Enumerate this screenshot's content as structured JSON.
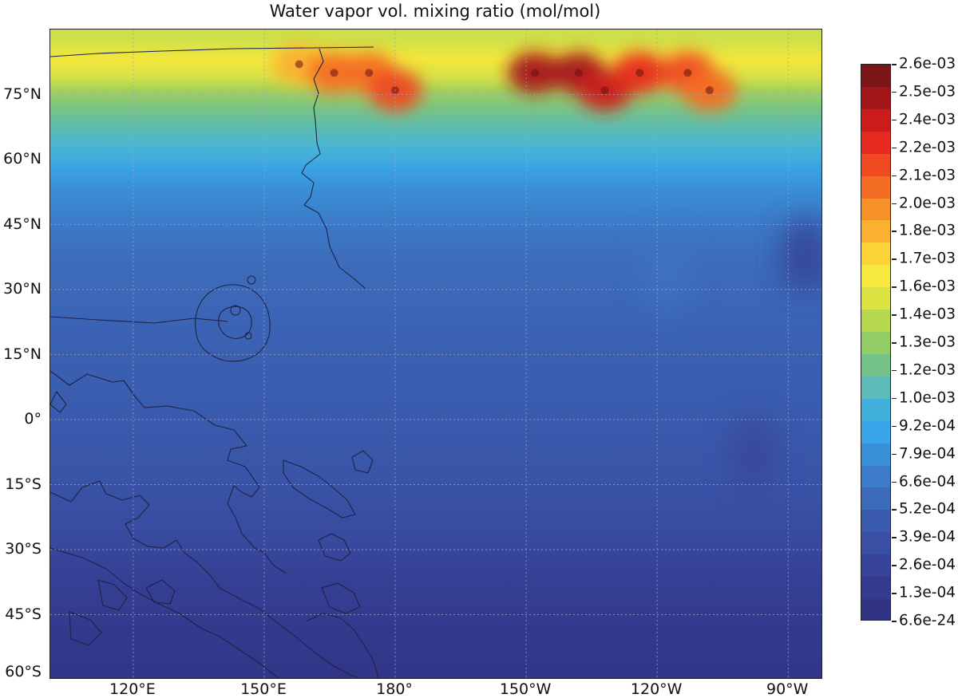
{
  "title": "Water vapor vol. mixing ratio (mol/mol)",
  "map": {
    "projection": "cylindrical",
    "lon_range": [
      101,
      278
    ],
    "lat_range": [
      -60,
      90
    ],
    "gridlines": true,
    "coastlines": true,
    "lat_ticks": [
      {
        "value": 75,
        "label": "75°N"
      },
      {
        "value": 60,
        "label": "60°N"
      },
      {
        "value": 45,
        "label": "45°N"
      },
      {
        "value": 30,
        "label": "30°N"
      },
      {
        "value": 15,
        "label": "15°N"
      },
      {
        "value": 0,
        "label": "0°"
      },
      {
        "value": -15,
        "label": "15°S"
      },
      {
        "value": -30,
        "label": "30°S"
      },
      {
        "value": -45,
        "label": "45°S"
      },
      {
        "value": -60,
        "label": "60°S"
      }
    ],
    "lon_ticks": [
      {
        "value": 120,
        "label": "120°E"
      },
      {
        "value": 150,
        "label": "150°E"
      },
      {
        "value": 180,
        "label": "180°"
      },
      {
        "value": 210,
        "label": "150°W"
      },
      {
        "value": 240,
        "label": "120°W"
      },
      {
        "value": 270,
        "label": "90°W"
      }
    ]
  },
  "colorbar": {
    "position": "right",
    "labels": [
      "2.6e-03",
      "2.5e-03",
      "2.4e-03",
      "2.2e-03",
      "2.1e-03",
      "2.0e-03",
      "1.8e-03",
      "1.7e-03",
      "1.6e-03",
      "1.4e-03",
      "1.3e-03",
      "1.2e-03",
      "1.0e-03",
      "9.2e-04",
      "7.9e-04",
      "6.6e-04",
      "5.2e-04",
      "3.9e-04",
      "2.6e-04",
      "1.3e-04",
      "6.6e-24"
    ],
    "colors": [
      "#7a1416",
      "#a5161a",
      "#cb1b1d",
      "#e62a20",
      "#ef4a22",
      "#f46d24",
      "#f8902a",
      "#fbb030",
      "#fcd43a",
      "#f7e93e",
      "#dbe443",
      "#b5d84e",
      "#92cc65",
      "#74c28a",
      "#5cbbb6",
      "#42b0dc",
      "#39a4e8",
      "#3a8fd9",
      "#3b7bc9",
      "#3c6ab9",
      "#3a5bad",
      "#3a4fa3",
      "#37449a",
      "#343b8e",
      "#313384"
    ]
  },
  "field": {
    "bands": [
      {
        "lat": 88,
        "color": "#cde04a"
      },
      {
        "lat": 83,
        "color": "#f4e73c"
      },
      {
        "lat": 79,
        "color": "#d6e247"
      },
      {
        "lat": 76,
        "color": "#a3d15a"
      },
      {
        "lat": 72,
        "color": "#7bc484"
      },
      {
        "lat": 67,
        "color": "#5bbcb3"
      },
      {
        "lat": 62,
        "color": "#45b3d8"
      },
      {
        "lat": 58,
        "color": "#3aa3e4"
      },
      {
        "lat": 53,
        "color": "#3a8fd6"
      },
      {
        "lat": 46,
        "color": "#3b7cc8"
      },
      {
        "lat": 36,
        "color": "#3c6cba"
      },
      {
        "lat": 20,
        "color": "#3b62b4"
      },
      {
        "lat": 3,
        "color": "#3a5cae"
      },
      {
        "lat": -12,
        "color": "#3a55a8"
      },
      {
        "lat": -26,
        "color": "#384ba0"
      },
      {
        "lat": -38,
        "color": "#353f93"
      },
      {
        "lat": -60,
        "color": "#313587"
      }
    ],
    "hotspots": [
      {
        "lon": 158,
        "lat": 82,
        "value": 0.0018,
        "color": "#fbb030"
      },
      {
        "lon": 166,
        "lat": 80,
        "value": 0.0021,
        "color": "#f46d24"
      },
      {
        "lon": 174,
        "lat": 80,
        "value": 0.0021,
        "color": "#f46d24"
      },
      {
        "lon": 180,
        "lat": 76,
        "value": 0.0022,
        "color": "#ef4a22"
      },
      {
        "lon": 212,
        "lat": 80,
        "value": 0.0026,
        "color": "#a5161a"
      },
      {
        "lon": 222,
        "lat": 80,
        "value": 0.0026,
        "color": "#a5161a"
      },
      {
        "lon": 228,
        "lat": 76,
        "value": 0.0025,
        "color": "#cb1b1d"
      },
      {
        "lon": 236,
        "lat": 80,
        "value": 0.0024,
        "color": "#e62a20"
      },
      {
        "lon": 247,
        "lat": 80,
        "value": 0.0022,
        "color": "#ef4a22"
      },
      {
        "lon": 252,
        "lat": 76,
        "value": 0.0021,
        "color": "#f46d24"
      }
    ],
    "lows": [
      {
        "lon": 274,
        "lat": 38,
        "value": 0.00013,
        "color": "#343b8e"
      },
      {
        "lon": 262,
        "lat": -8,
        "value": 0.00013,
        "color": "#37449a"
      },
      {
        "lon": 242,
        "lat": 34,
        "value": 0.0005,
        "color": "#3f73c2"
      }
    ]
  }
}
